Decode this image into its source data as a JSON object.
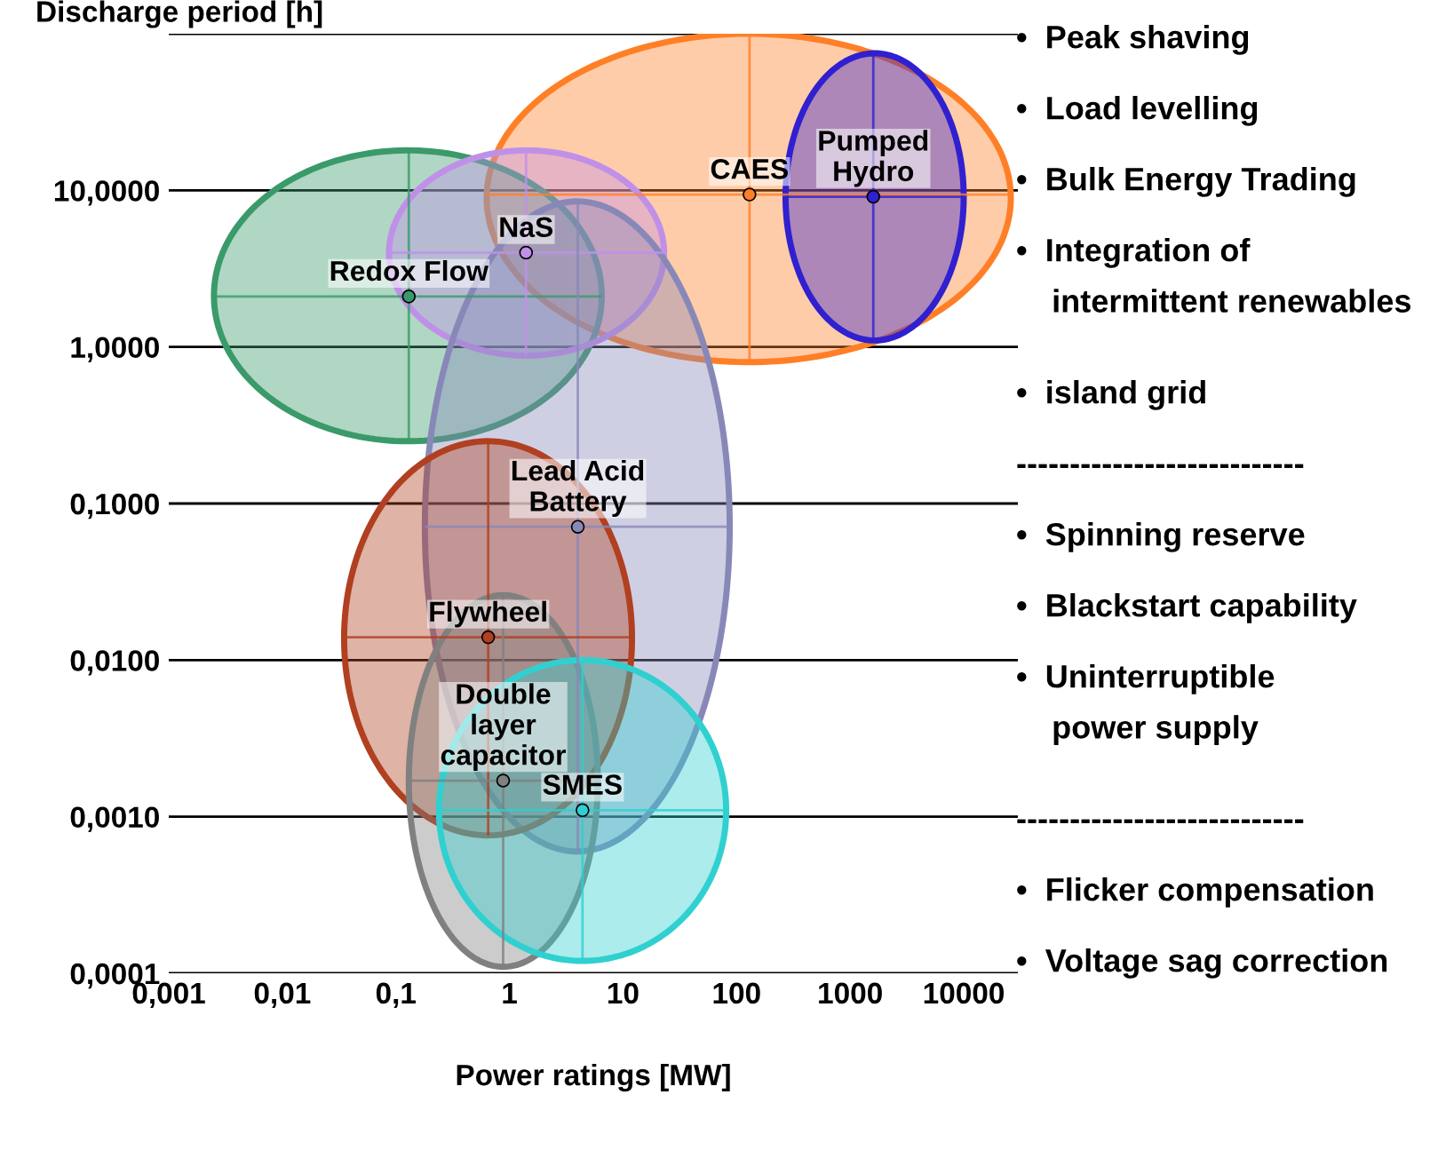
{
  "chart_data": {
    "type": "scatter",
    "xlabel": "Power ratings [MW]",
    "ylabel": "Discharge period [h]",
    "log": "xy",
    "grid": "y",
    "marker": "circle",
    "xlim": [
      0.001,
      30000
    ],
    "ylim": [
      0.0001,
      100
    ],
    "xticks": [
      {
        "value": 0.001,
        "label": "0,001"
      },
      {
        "value": 0.01,
        "label": "0,01"
      },
      {
        "value": 0.1,
        "label": "0,1"
      },
      1,
      10,
      100,
      1000,
      10000
    ],
    "yticks": [
      {
        "value": 0.0001,
        "label": "0,0001"
      },
      {
        "value": 0.001,
        "label": "0,0010"
      },
      {
        "value": 0.01,
        "label": "0,0100"
      },
      {
        "value": 0.1,
        "label": "0,1000"
      },
      {
        "value": 1,
        "label": "1,0000"
      },
      {
        "value": 10,
        "label": "10,0000"
      },
      {
        "value": 100,
        "label": null
      }
    ],
    "series": [
      {
        "name": "CAES",
        "color": "#ff7f27",
        "x": [
          130
        ],
        "values": [
          9.4
        ],
        "xerrors": [
          [
            0.63,
            26000
          ]
        ],
        "errors": [
          [
            0.8,
            100
          ]
        ]
      },
      {
        "name": "Pumped\nHydro",
        "color": "#3020d0",
        "x": [
          1600
        ],
        "values": [
          9.1
        ],
        "xerrors": [
          [
            270,
            10000
          ]
        ],
        "errors": [
          [
            1.1,
            75
          ]
        ]
      },
      {
        "name": "Redox Flow",
        "color": "#3a9a6a",
        "x": [
          0.13
        ],
        "values": [
          2.1
        ],
        "xerrors": [
          [
            0.0025,
            6.5
          ]
        ],
        "errors": [
          [
            0.25,
            18
          ]
        ]
      },
      {
        "name": "NaS",
        "color": "#c090e8",
        "x": [
          1.4
        ],
        "values": [
          4
        ],
        "xerrors": [
          [
            0.087,
            23
          ]
        ],
        "errors": [
          [
            0.88,
            18
          ]
        ]
      },
      {
        "name": "Lead Acid\nBattery",
        "color": "#8888b8",
        "x": [
          4
        ],
        "values": [
          0.071
        ],
        "xerrors": [
          [
            0.18,
            87
          ]
        ],
        "errors": [
          [
            0.0006,
            8.5
          ]
        ]
      },
      {
        "name": "Flywheel",
        "color": "#b04020",
        "x": [
          0.65
        ],
        "values": [
          0.014
        ],
        "xerrors": [
          [
            0.035,
            12
          ]
        ],
        "errors": [
          [
            0.00076,
            0.25
          ]
        ]
      },
      {
        "name": "Double\nlayer\ncapacitor",
        "color": "#808080",
        "x": [
          0.88
        ],
        "values": [
          0.0017
        ],
        "xerrors": [
          [
            0.13,
            6
          ]
        ],
        "errors": [
          [
            0.00011,
            0.026
          ]
        ]
      },
      {
        "name": "SMES",
        "color": "#30d0d0",
        "x": [
          4.4
        ],
        "values": [
          0.0011
        ],
        "xerrors": [
          [
            0.24,
            81
          ]
        ],
        "errors": [
          [
            0.00012,
            0.01
          ]
        ]
      }
    ],
    "annotations": [
      "•  Peak shaving",
      "•  Load levelling",
      "•  Bulk Energy Trading",
      "•  Integration of\n    intermittent renewables",
      "•  island grid",
      "---------------------------",
      "•  Spinning reserve",
      "•  Blackstart capability",
      "•  Uninterruptible\n    power supply",
      "---------------------------",
      "•  Flicker compensation",
      "•  Voltage sag correction"
    ]
  }
}
